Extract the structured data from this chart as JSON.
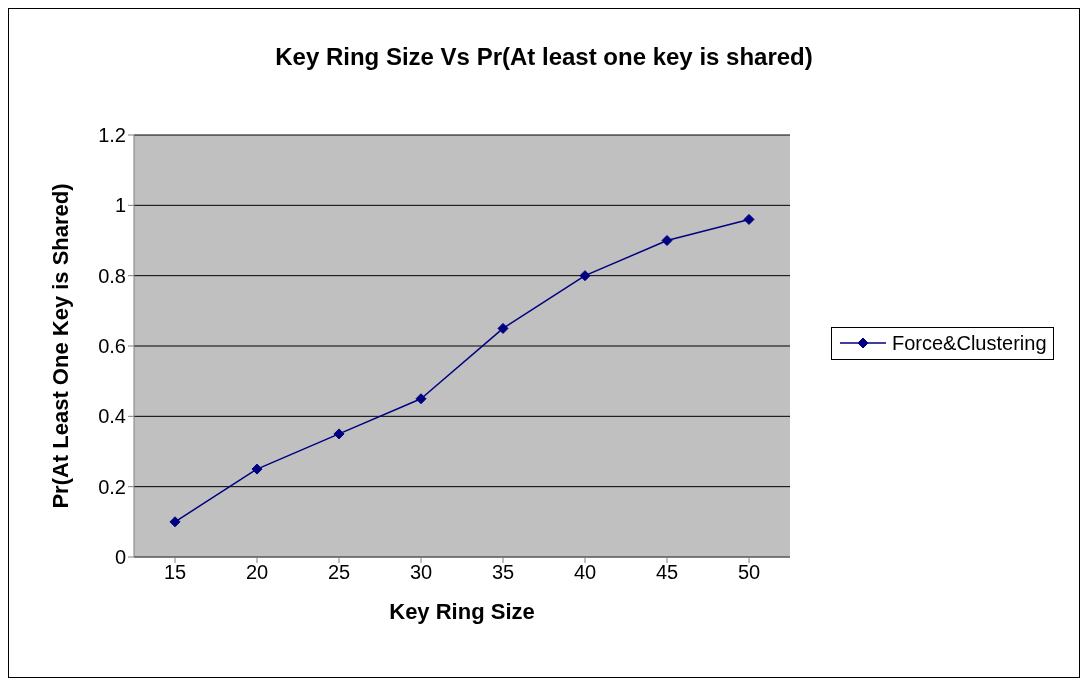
{
  "chart_data": {
    "type": "line",
    "title": "Key Ring Size Vs Pr(At least one key is shared)",
    "xlabel": "Key Ring Size",
    "ylabel": "Pr(At Least One Key is Shared)",
    "categories": [
      "15",
      "20",
      "25",
      "30",
      "35",
      "40",
      "45",
      "50"
    ],
    "series": [
      {
        "name": "Force&Clustering",
        "color": "#000080",
        "values": [
          0.1,
          0.25,
          0.35,
          0.45,
          0.65,
          0.8,
          0.9,
          0.96
        ]
      }
    ],
    "ylim": [
      0,
      1.2
    ],
    "yticks": [
      0,
      0.2,
      0.4,
      0.6,
      0.8,
      1,
      1.2
    ],
    "grid": "y",
    "legend": "right",
    "marker": "diamond",
    "line_style": "solid"
  }
}
